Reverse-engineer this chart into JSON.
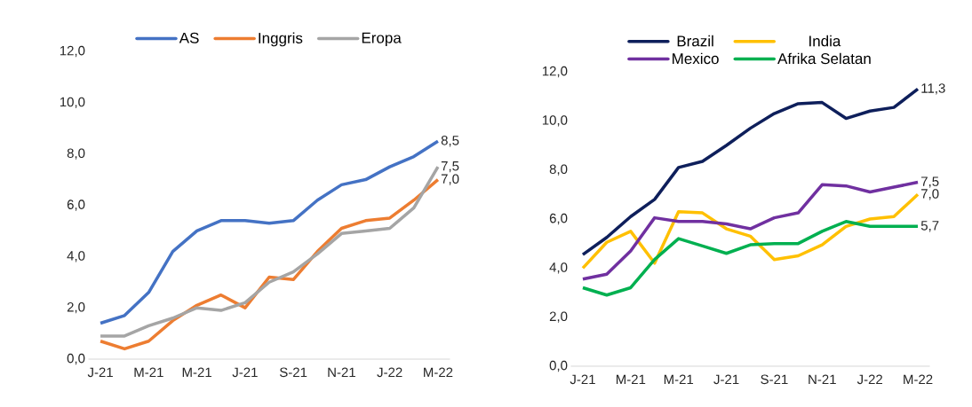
{
  "chart_data": [
    {
      "type": "line",
      "categories": [
        "J-21",
        null,
        "M-21",
        null,
        "M-21",
        null,
        "J-21",
        null,
        "S-21",
        null,
        "N-21",
        null,
        "J-22",
        null,
        "M-22"
      ],
      "series": [
        {
          "name": "AS",
          "color": "#4472c4",
          "values": [
            1.4,
            1.7,
            2.6,
            4.2,
            5.0,
            5.4,
            5.4,
            5.3,
            5.4,
            6.2,
            6.8,
            7.0,
            7.5,
            7.9,
            8.5
          ],
          "value_labels": [
            null,
            null,
            null,
            null,
            null,
            null,
            null,
            null,
            null,
            null,
            null,
            null,
            null,
            null,
            "8,5"
          ]
        },
        {
          "name": "Inggris",
          "color": "#ed7d31",
          "values": [
            0.7,
            0.4,
            0.7,
            1.5,
            2.1,
            2.5,
            2.0,
            3.2,
            3.1,
            4.2,
            5.1,
            5.4,
            5.5,
            6.2,
            7.0
          ],
          "value_labels": [
            null,
            null,
            null,
            null,
            null,
            null,
            null,
            null,
            null,
            null,
            null,
            null,
            null,
            null,
            "7,0"
          ]
        },
        {
          "name": "Eropa",
          "color": "#a5a5a5",
          "values": [
            0.9,
            0.9,
            1.3,
            1.6,
            2.0,
            1.9,
            2.2,
            3.0,
            3.4,
            4.1,
            4.9,
            5.0,
            5.1,
            5.9,
            7.5
          ],
          "value_labels": [
            null,
            null,
            null,
            null,
            null,
            null,
            null,
            null,
            null,
            null,
            null,
            null,
            null,
            null,
            "7,5"
          ]
        }
      ],
      "ylim": [
        0,
        12
      ],
      "yticks": [
        {
          "value": 0,
          "label": "0,0"
        },
        {
          "value": 2,
          "label": "2,0"
        },
        {
          "value": 4,
          "label": "4,0"
        },
        {
          "value": 6,
          "label": "6,0"
        },
        {
          "value": 8,
          "label": "8,0"
        },
        {
          "value": 10,
          "label": "10,0"
        },
        {
          "value": 12,
          "label": "12,0"
        }
      ],
      "legend": "top"
    },
    {
      "type": "line",
      "categories": [
        "J-21",
        null,
        "M-21",
        null,
        "M-21",
        null,
        "J-21",
        null,
        "S-21",
        null,
        "N-21",
        null,
        "J-22",
        null,
        "M-22"
      ],
      "series": [
        {
          "name": "Brazil",
          "color": "#0e1f5b",
          "values": [
            4.55,
            5.25,
            6.1,
            6.8,
            8.1,
            8.35,
            9.0,
            9.7,
            10.3,
            10.7,
            10.75,
            10.1,
            10.4,
            10.55,
            11.3
          ],
          "value_labels": [
            null,
            null,
            null,
            null,
            null,
            null,
            null,
            null,
            null,
            null,
            null,
            null,
            null,
            null,
            "11,3"
          ]
        },
        {
          "name": "India",
          "color": "#ffc000",
          "values": [
            4.0,
            5.05,
            5.5,
            4.2,
            6.3,
            6.25,
            5.6,
            5.3,
            4.35,
            4.5,
            4.95,
            5.7,
            6.0,
            6.1,
            7.0
          ],
          "value_labels": [
            null,
            null,
            null,
            null,
            null,
            null,
            null,
            null,
            null,
            null,
            null,
            null,
            null,
            null,
            "7,0"
          ]
        },
        {
          "name": "Mexico",
          "color": "#7030a0",
          "values": [
            3.55,
            3.75,
            4.7,
            6.05,
            5.9,
            5.9,
            5.8,
            5.6,
            6.05,
            6.25,
            7.4,
            7.35,
            7.1,
            7.3,
            7.5
          ],
          "value_labels": [
            null,
            null,
            null,
            null,
            null,
            null,
            null,
            null,
            null,
            null,
            null,
            null,
            null,
            null,
            "7,5"
          ]
        },
        {
          "name": "Afrika Selatan",
          "color": "#00b050",
          "values": [
            3.2,
            2.9,
            3.2,
            4.35,
            5.2,
            4.9,
            4.6,
            4.95,
            5.0,
            5.0,
            5.5,
            5.9,
            5.7,
            5.7,
            5.7
          ],
          "value_labels": [
            null,
            null,
            null,
            null,
            null,
            null,
            null,
            null,
            null,
            null,
            null,
            null,
            null,
            null,
            "5,7"
          ]
        }
      ],
      "ylim": [
        0,
        12
      ],
      "yticks": [
        {
          "value": 0,
          "label": "0,0"
        },
        {
          "value": 2,
          "label": "2,0"
        },
        {
          "value": 4,
          "label": "4,0"
        },
        {
          "value": 6,
          "label": "6,0"
        },
        {
          "value": 8,
          "label": "8,0"
        },
        {
          "value": 10,
          "label": "10,0"
        },
        {
          "value": 12,
          "label": "12,0"
        }
      ],
      "legend": "top"
    }
  ]
}
